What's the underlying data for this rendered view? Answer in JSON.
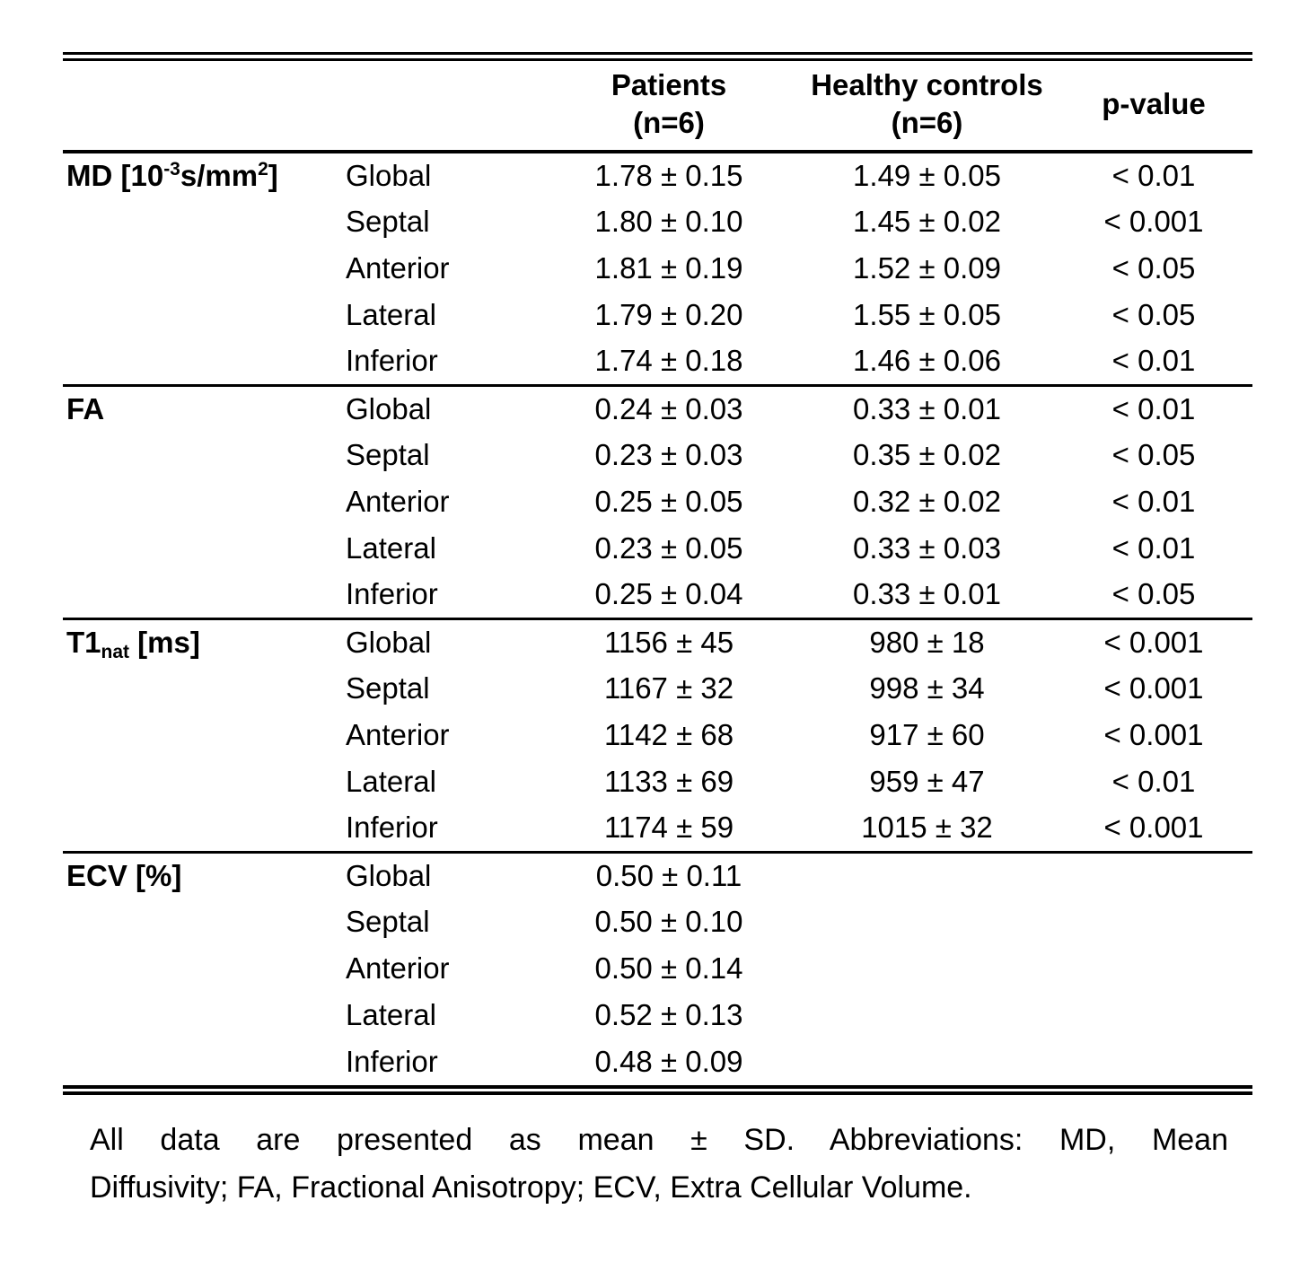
{
  "table": {
    "header": {
      "patients_line1": "Patients",
      "patients_line2": "(n=6)",
      "controls_line1": "Healthy controls",
      "controls_line2": "(n=6)",
      "pvalue": "p-value"
    },
    "sections": [
      {
        "variable": "MD [10^-3 s/mm^2]",
        "label_parts": [
          {
            "text": "MD [10"
          },
          {
            "text": "-3",
            "style": "sup"
          },
          {
            "text": "s/mm"
          },
          {
            "text": "2",
            "style": "sup"
          },
          {
            "text": "]"
          }
        ],
        "rows": [
          {
            "region": "Global",
            "patients": "1.78 ± 0.15",
            "controls": "1.49 ± 0.05",
            "p": "< 0.01"
          },
          {
            "region": "Septal",
            "patients": "1.80 ± 0.10",
            "controls": "1.45 ± 0.02",
            "p": "< 0.001"
          },
          {
            "region": "Anterior",
            "patients": "1.81 ± 0.19",
            "controls": "1.52 ± 0.09",
            "p": "< 0.05"
          },
          {
            "region": "Lateral",
            "patients": "1.79 ± 0.20",
            "controls": "1.55 ± 0.05",
            "p": "< 0.05"
          },
          {
            "region": "Inferior",
            "patients": "1.74 ± 0.18",
            "controls": "1.46 ± 0.06",
            "p": "< 0.01"
          }
        ]
      },
      {
        "variable": "FA",
        "label_parts": [
          {
            "text": "FA"
          }
        ],
        "rows": [
          {
            "region": "Global",
            "patients": "0.24 ± 0.03",
            "controls": "0.33 ± 0.01",
            "p": "< 0.01"
          },
          {
            "region": "Septal",
            "patients": "0.23 ± 0.03",
            "controls": "0.35 ± 0.02",
            "p": "< 0.05"
          },
          {
            "region": "Anterior",
            "patients": "0.25 ± 0.05",
            "controls": "0.32 ± 0.02",
            "p": "< 0.01"
          },
          {
            "region": "Lateral",
            "patients": "0.23 ± 0.05",
            "controls": "0.33 ± 0.03",
            "p": "< 0.01"
          },
          {
            "region": "Inferior",
            "patients": "0.25 ± 0.04",
            "controls": "0.33 ± 0.01",
            "p": "< 0.05"
          }
        ]
      },
      {
        "variable": "T1_nat [ms]",
        "label_parts": [
          {
            "text": "T1"
          },
          {
            "text": "nat",
            "style": "sub"
          },
          {
            "text": " [ms]"
          }
        ],
        "rows": [
          {
            "region": "Global",
            "patients": "1156 ± 45",
            "controls": "980 ± 18",
            "p": "< 0.001"
          },
          {
            "region": "Septal",
            "patients": "1167 ± 32",
            "controls": "998 ± 34",
            "p": "< 0.001"
          },
          {
            "region": "Anterior",
            "patients": "1142 ± 68",
            "controls": "917 ± 60",
            "p": "< 0.001"
          },
          {
            "region": "Lateral",
            "patients": "1133 ± 69",
            "controls": "959 ± 47",
            "p": "< 0.01"
          },
          {
            "region": "Inferior",
            "patients": "1174 ± 59",
            "controls": "1015 ± 32",
            "p": "< 0.001"
          }
        ]
      },
      {
        "variable": "ECV [%]",
        "label_parts": [
          {
            "text": "ECV [%]"
          }
        ],
        "rows": [
          {
            "region": "Global",
            "patients": "0.50 ± 0.11",
            "controls": "",
            "p": ""
          },
          {
            "region": "Septal",
            "patients": "0.50 ± 0.10",
            "controls": "",
            "p": ""
          },
          {
            "region": "Anterior",
            "patients": "0.50 ± 0.14",
            "controls": "",
            "p": ""
          },
          {
            "region": "Lateral",
            "patients": "0.52 ± 0.13",
            "controls": "",
            "p": ""
          },
          {
            "region": "Inferior",
            "patients": "0.48 ± 0.09",
            "controls": "",
            "p": ""
          }
        ]
      }
    ]
  },
  "footnote": {
    "line1": "All data are presented as mean ± SD. Abbreviations: MD, Mean",
    "line2": "Diffusivity; FA, Fractional Anisotropy; ECV, Extra Cellular Volume."
  }
}
